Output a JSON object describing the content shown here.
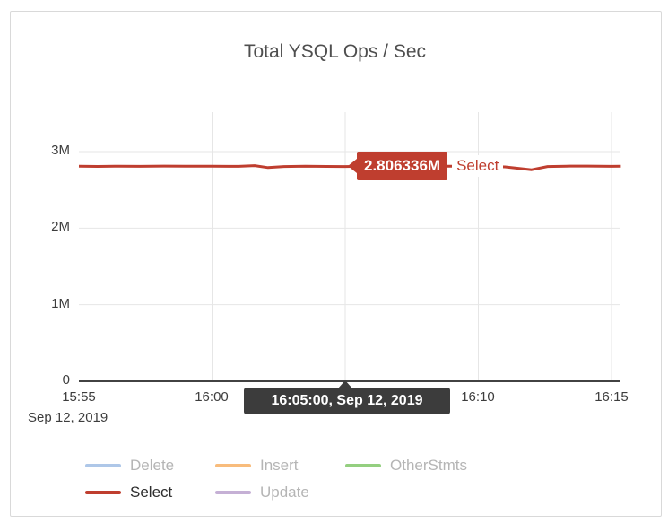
{
  "chart_data": {
    "type": "line",
    "title": "Total YSQL Ops / Sec",
    "x_ticks": [
      "15:55",
      "16:00",
      "16:05",
      "16:10",
      "16:15"
    ],
    "x_tick_minutes": [
      0,
      5,
      10,
      15,
      20
    ],
    "x_axis_date_label": "Sep 12, 2019",
    "y_ticks": [
      "0",
      "1M",
      "2M",
      "3M"
    ],
    "y_tick_values_millions": [
      0,
      1,
      2,
      3
    ],
    "ylim_millions": [
      0,
      3.516
    ],
    "x_range_minutes": [
      0,
      20.35
    ],
    "grid": true,
    "legend_position": "bottom",
    "axis_color": "#424242",
    "grid_color": "#e6e6e6",
    "series": [
      {
        "name": "Delete",
        "color": "#aec7e8",
        "dimmed": true
      },
      {
        "name": "Insert",
        "color": "#f8bc7c",
        "dimmed": true
      },
      {
        "name": "OtherStmts",
        "color": "#94cf80",
        "dimmed": true
      },
      {
        "name": "Select",
        "color": "#bf3e2f",
        "dimmed": false,
        "points_minutes_vs_millions": [
          [
            0,
            2.81
          ],
          [
            0.7,
            2.807
          ],
          [
            1.5,
            2.811
          ],
          [
            2.3,
            2.808
          ],
          [
            3.2,
            2.812
          ],
          [
            4,
            2.809
          ],
          [
            5,
            2.811
          ],
          [
            6,
            2.808
          ],
          [
            6.6,
            2.818
          ],
          [
            7.1,
            2.792
          ],
          [
            7.7,
            2.806
          ],
          [
            8.5,
            2.81
          ],
          [
            9.3,
            2.807
          ],
          [
            10,
            2.806336
          ],
          [
            10.8,
            2.81
          ],
          [
            11.6,
            2.813
          ],
          [
            12.4,
            2.808
          ],
          [
            13.2,
            2.811
          ],
          [
            14,
            2.809
          ],
          [
            15,
            2.81
          ],
          [
            16,
            2.801
          ],
          [
            17,
            2.763
          ],
          [
            17.6,
            2.806
          ],
          [
            18.3,
            2.81
          ],
          [
            19.1,
            2.812
          ],
          [
            20,
            2.808
          ],
          [
            20.35,
            2.81
          ]
        ]
      },
      {
        "name": "Update",
        "color": "#c5b0d5",
        "dimmed": true
      }
    ],
    "hover": {
      "time_label": "16:05:00, Sep 12, 2019",
      "value_label": "2.806336M",
      "value_millions": 2.806336,
      "series_name": "Select"
    }
  }
}
